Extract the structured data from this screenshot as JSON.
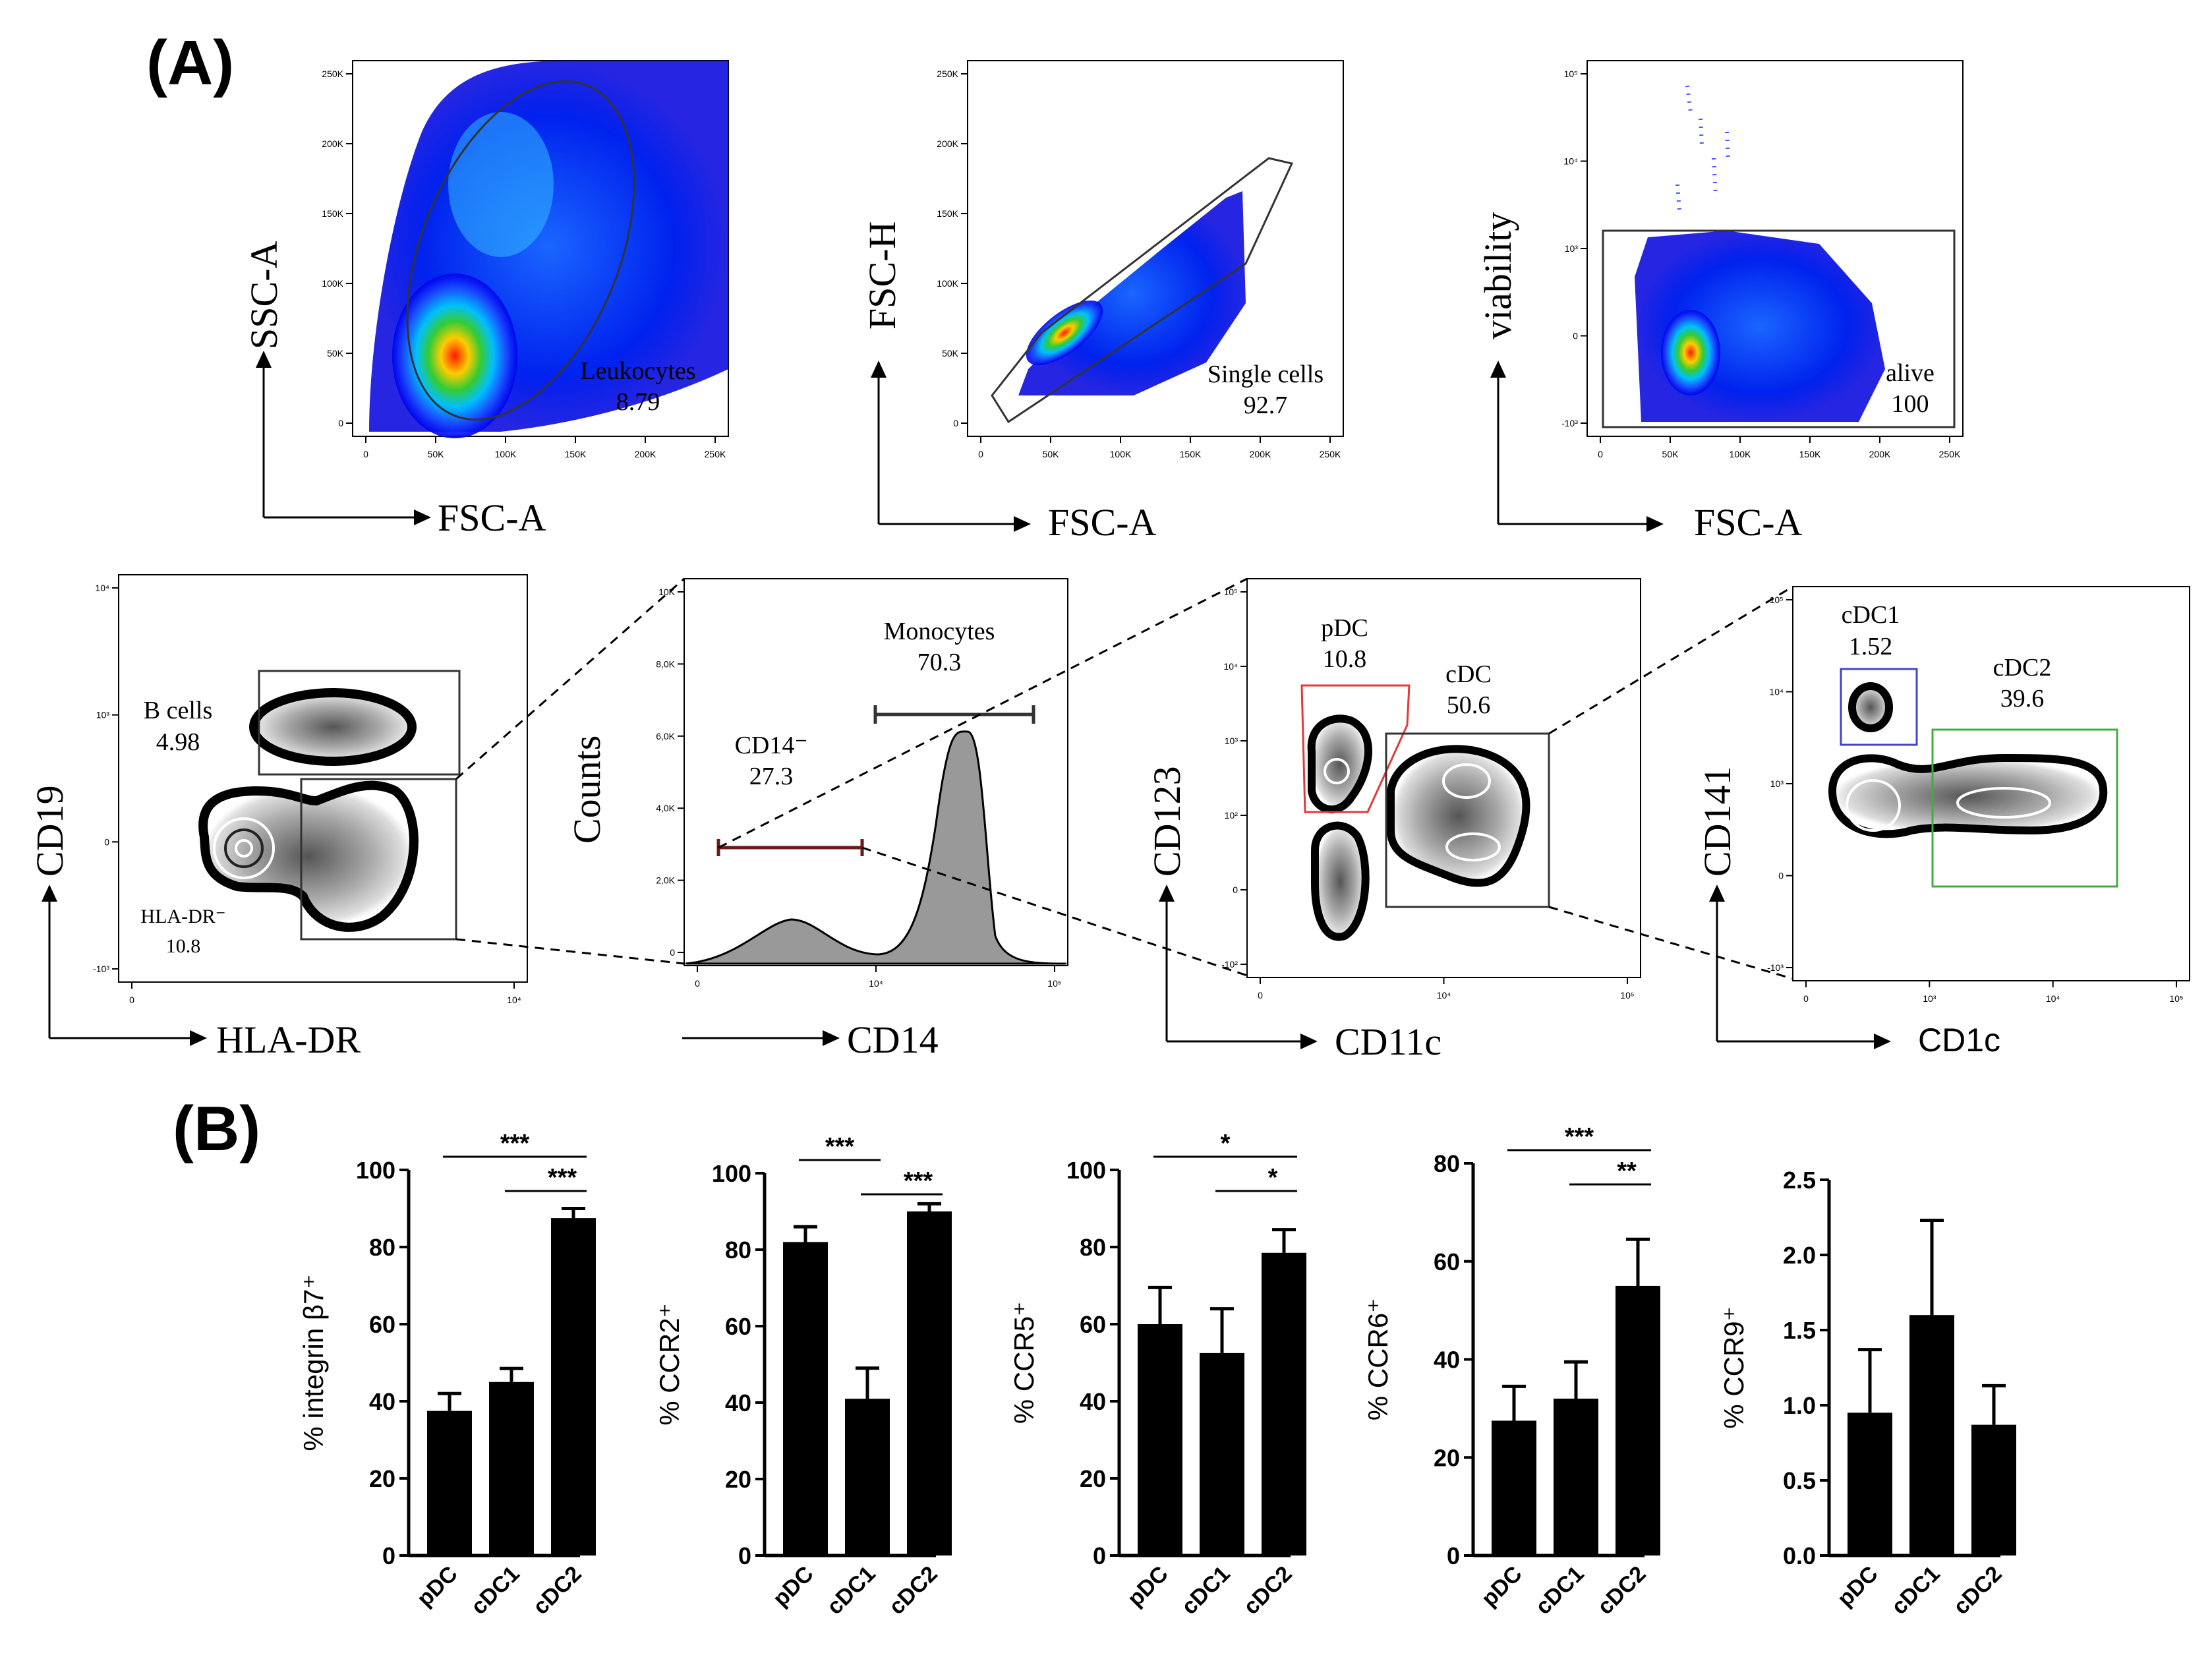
{
  "panel_labels": {
    "a": "(A)",
    "b": "(B)"
  },
  "panel_a": {
    "plots": [
      {
        "id": "p1",
        "x_label": "FSC-A",
        "y_label": "SSC-A",
        "gate_name": "Leukocytes",
        "gate_value": "8.79",
        "x_ticks": [
          "0",
          "50K",
          "100K",
          "150K",
          "200K",
          "250K"
        ],
        "y_ticks": [
          "0",
          "50K",
          "100K",
          "150K",
          "200K",
          "250K"
        ]
      },
      {
        "id": "p2",
        "x_label": "FSC-A",
        "y_label": "FSC-H",
        "gate_name": "Single cells",
        "gate_value": "92.7",
        "x_ticks": [
          "0",
          "50K",
          "100K",
          "150K",
          "200K",
          "250K"
        ],
        "y_ticks": [
          "0",
          "50K",
          "100K",
          "150K",
          "200K",
          "250K"
        ]
      },
      {
        "id": "p3",
        "x_label": "FSC-A",
        "y_label": "viability",
        "gate_name": "alive",
        "gate_value": "100",
        "x_ticks": [
          "0",
          "50K",
          "100K",
          "150K",
          "200K",
          "250K"
        ],
        "y_ticks": [
          "-10³",
          "0",
          "10³",
          "10⁴",
          "10⁵"
        ]
      },
      {
        "id": "p4",
        "x_label": "HLA-DR",
        "y_label": "CD19",
        "gates": [
          {
            "name": "B cells",
            "value": "4.98"
          },
          {
            "name": "HLA-DR⁻",
            "value": "10.8"
          }
        ],
        "x_ticks": [
          "0",
          "10⁴"
        ],
        "y_ticks": [
          "-10³",
          "0",
          "10³",
          "10⁴"
        ]
      },
      {
        "id": "p5",
        "x_label": "CD14",
        "y_label": "Counts",
        "gates": [
          {
            "name": "Monocytes",
            "value": "70.3"
          },
          {
            "name": "CD14⁻",
            "value": "27.3"
          }
        ],
        "x_ticks": [
          "0",
          "10⁴",
          "10⁵"
        ],
        "y_ticks": [
          "0",
          "2,0K",
          "4,0K",
          "6,0K",
          "8,0K",
          "10K"
        ]
      },
      {
        "id": "p6",
        "x_label": "CD11c",
        "y_label": "CD123",
        "gates": [
          {
            "name": "pDC",
            "value": "10.8"
          },
          {
            "name": "cDC",
            "value": "50.6"
          }
        ],
        "x_ticks": [
          "0",
          "10⁴",
          "10⁵"
        ],
        "y_ticks": [
          "-10²",
          "0",
          "10²",
          "10³",
          "10⁴",
          "10⁵"
        ]
      },
      {
        "id": "p7",
        "x_label": "CD1c",
        "y_label": "CD141",
        "gates": [
          {
            "name": "cDC1",
            "value": "1.52"
          },
          {
            "name": "cDC2",
            "value": "39.6"
          }
        ],
        "x_ticks": [
          "0",
          "10³",
          "10⁴",
          "10⁵"
        ],
        "y_ticks": [
          "-10³",
          "0",
          "10³",
          "10⁴",
          "10⁵"
        ]
      }
    ]
  },
  "chart_data": [
    {
      "type": "bar",
      "title": "",
      "ylabel": "% integrin β7⁺",
      "categories": [
        "pDC",
        "cDC1",
        "cDC2"
      ],
      "values": [
        37.5,
        45,
        87.5
      ],
      "errors": [
        4.5,
        3.5,
        2.5
      ],
      "ylim": [
        0,
        100
      ],
      "yticks": [
        "0",
        "20",
        "40",
        "60",
        "80",
        "100"
      ],
      "significance": [
        {
          "from": 0,
          "to": 2,
          "label": "***"
        },
        {
          "from": 1,
          "to": 2,
          "label": "***"
        }
      ]
    },
    {
      "type": "bar",
      "title": "",
      "ylabel": "% CCR2⁺",
      "categories": [
        "pDC",
        "cDC1",
        "cDC2"
      ],
      "values": [
        82,
        41,
        90
      ],
      "errors": [
        4,
        8,
        2
      ],
      "ylim": [
        0,
        100
      ],
      "yticks": [
        "0",
        "20",
        "40",
        "60",
        "80",
        "100"
      ],
      "significance": [
        {
          "from": 0,
          "to": 1,
          "label": "***"
        },
        {
          "from": 1,
          "to": 2,
          "label": "***"
        }
      ]
    },
    {
      "type": "bar",
      "title": "",
      "ylabel": "% CCR5⁺",
      "categories": [
        "pDC",
        "cDC1",
        "cDC2"
      ],
      "values": [
        60,
        52.5,
        78.5
      ],
      "errors": [
        9.5,
        11.5,
        6
      ],
      "ylim": [
        0,
        100
      ],
      "yticks": [
        "0",
        "20",
        "40",
        "60",
        "80",
        "100"
      ],
      "significance": [
        {
          "from": 0,
          "to": 2,
          "label": "*"
        },
        {
          "from": 1,
          "to": 2,
          "label": "*"
        }
      ]
    },
    {
      "type": "bar",
      "title": "",
      "ylabel": "% CCR6⁺",
      "categories": [
        "pDC",
        "cDC1",
        "cDC2"
      ],
      "values": [
        27.5,
        32,
        55
      ],
      "errors": [
        7,
        7.5,
        9.5
      ],
      "ylim": [
        0,
        80
      ],
      "yticks": [
        "0",
        "20",
        "40",
        "60",
        "80"
      ],
      "significance": [
        {
          "from": 0,
          "to": 2,
          "label": "***"
        },
        {
          "from": 1,
          "to": 2,
          "label": "**"
        }
      ]
    },
    {
      "type": "bar",
      "title": "",
      "ylabel": "% CCR9⁺",
      "categories": [
        "pDC",
        "cDC1",
        "cDC2"
      ],
      "values": [
        0.95,
        1.6,
        0.87
      ],
      "errors": [
        0.42,
        0.63,
        0.26
      ],
      "ylim": [
        0,
        2.5
      ],
      "yticks": [
        "0.0",
        "0.5",
        "1.0",
        "1.5",
        "2.0",
        "2.5"
      ],
      "significance": []
    }
  ]
}
